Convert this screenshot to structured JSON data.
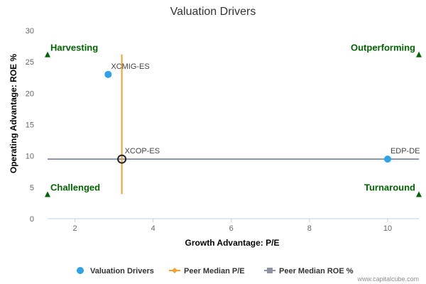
{
  "chart_data": {
    "type": "scatter",
    "title": "Valuation Drivers",
    "xlabel": "Growth Advantage: P/E",
    "ylabel": "Operating Advantage: ROE %",
    "xlim": [
      1.3,
      10.8
    ],
    "ylim": [
      0,
      30
    ],
    "xticks": [
      2,
      4,
      6,
      8,
      10
    ],
    "yticks": [
      0,
      5,
      10,
      15,
      20,
      25,
      30
    ],
    "grid": false,
    "points": [
      {
        "label": "XCMIG-ES",
        "x": 2.85,
        "y": 23.0
      },
      {
        "label": "XCOP-ES",
        "x": 3.2,
        "y": 9.5,
        "highlight": true
      },
      {
        "label": "EDP-DE",
        "x": 10.0,
        "y": 9.5
      }
    ],
    "peer_median_pe": {
      "x": 3.2,
      "y_range": [
        3.9,
        26.2
      ]
    },
    "peer_median_roe": {
      "y": 9.5,
      "x_range": [
        1.3,
        10.8
      ]
    },
    "quadrants": [
      {
        "label": "Harvesting",
        "position": "top-left"
      },
      {
        "label": "Outperforming",
        "position": "top-right"
      },
      {
        "label": "Challenged",
        "position": "bottom-left"
      },
      {
        "label": "Turnaround",
        "position": "bottom-right"
      }
    ],
    "legend": {
      "placement": "bottom",
      "items": [
        "Valuation Drivers",
        "Peer Median P/E",
        "Peer Median ROE %"
      ]
    },
    "credit": "www.capitalcube.com"
  },
  "colors": {
    "point": "#2ea2e8",
    "peer_pe": "#f0a22e",
    "peer_roe": "#8c93a3",
    "quadrant_text": "#006400",
    "marker": "#006400",
    "axis": "#c0d0e0"
  }
}
